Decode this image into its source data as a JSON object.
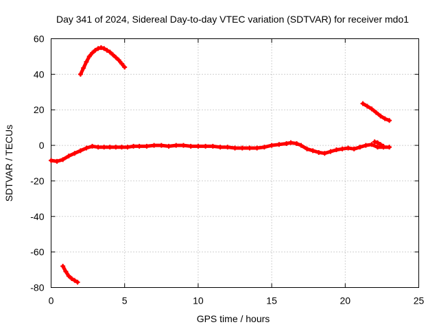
{
  "chart_data": {
    "type": "scatter",
    "title": "Day 341 of 2024, Sidereal Day-to-day VTEC variation (SDTVAR) for receiver mdo1",
    "xlabel": "GPS time / hours",
    "ylabel": "SDTVAR / TECUs",
    "xlim": [
      0,
      25
    ],
    "ylim": [
      -80,
      60
    ],
    "xticks": [
      0,
      5,
      10,
      15,
      20,
      25
    ],
    "xtick_labels": [
      "0",
      "5",
      "10",
      "15",
      "20",
      "25"
    ],
    "yticks": [
      -80,
      -60,
      -40,
      -20,
      0,
      20,
      40,
      60
    ],
    "ytick_labels": [
      "-80",
      "-60",
      "-40",
      "-20",
      "0",
      "20",
      "40",
      "60"
    ],
    "grid": true,
    "marker": "+",
    "color": "#ff0000",
    "series": [
      {
        "name": "main-trace",
        "x": [
          0.0,
          0.4,
          0.8,
          1.2,
          1.6,
          2.0,
          2.4,
          2.8,
          3.2,
          3.6,
          4.0,
          4.4,
          4.8,
          5.2,
          5.6,
          6.0,
          6.5,
          7.0,
          7.5,
          8.0,
          8.5,
          9.0,
          9.5,
          10.0,
          10.5,
          11.0,
          11.5,
          12.0,
          12.5,
          13.0,
          13.5,
          14.0,
          14.5,
          15.0,
          15.5,
          16.0,
          16.3,
          16.7,
          17.0,
          17.4,
          17.8,
          18.2,
          18.6,
          19.0,
          19.4,
          19.8,
          20.2,
          20.6,
          21.0,
          21.4,
          21.8,
          22.2,
          22.6,
          23.0
        ],
        "y": [
          -8.5,
          -9,
          -8,
          -6,
          -4.5,
          -3,
          -1.5,
          -0.5,
          -1,
          -1,
          -1,
          -1,
          -1,
          -1,
          -0.5,
          -0.5,
          -0.5,
          0,
          0,
          -0.5,
          0,
          0,
          -0.5,
          -0.5,
          -0.5,
          -0.5,
          -1,
          -1,
          -1.5,
          -1.5,
          -1.5,
          -1.5,
          -1,
          0,
          0.5,
          1,
          1.5,
          1,
          0,
          -2,
          -3,
          -4,
          -4.5,
          -3.5,
          -2.5,
          -2,
          -1.5,
          -2,
          -1,
          0,
          0.5,
          -1,
          -1,
          -1
        ]
      },
      {
        "name": "upper-left-arc",
        "x": [
          2.0,
          2.2,
          2.4,
          2.6,
          2.8,
          3.0,
          3.2,
          3.4,
          3.6,
          3.8,
          4.0,
          4.2,
          4.4,
          4.6,
          4.8,
          5.0
        ],
        "y": [
          40,
          43.5,
          47,
          50,
          52,
          53.5,
          54.5,
          55,
          54.5,
          53.5,
          52.5,
          51,
          49.5,
          48,
          46,
          44
        ]
      },
      {
        "name": "lower-left-segment",
        "x": [
          0.8,
          1.0,
          1.2,
          1.4,
          1.6,
          1.8
        ],
        "y": [
          -68,
          -71,
          -73.5,
          -75,
          -76,
          -77
        ]
      },
      {
        "name": "upper-right-segment",
        "x": [
          21.2,
          21.5,
          21.8,
          22.1,
          22.4,
          22.7,
          23.0
        ],
        "y": [
          23.5,
          22,
          20.5,
          18.5,
          16.5,
          15,
          14
        ]
      },
      {
        "name": "right-small-branch",
        "x": [
          22.0,
          22.2,
          22.4,
          22.6
        ],
        "y": [
          2,
          1.5,
          0.5,
          -0.5
        ]
      }
    ]
  }
}
